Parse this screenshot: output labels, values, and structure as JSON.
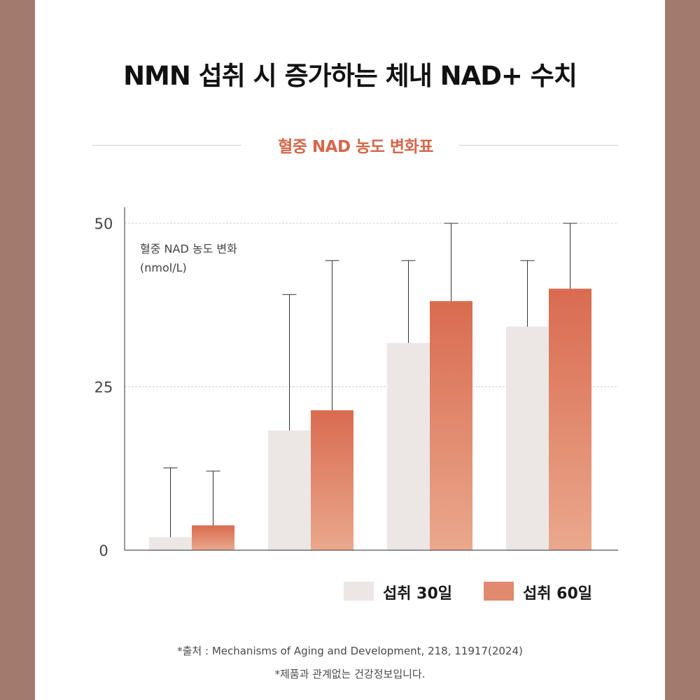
{
  "title": "NMN 섭취 시 증가하는 체내 NAD+ 수치",
  "subtitle": "혈중 NAD 농도 변화표",
  "chart_data": {
    "type": "bar",
    "categories": [
      "",
      "",
      "",
      ""
    ],
    "ylim": [
      0,
      50
    ],
    "yticks": [
      "0",
      "25",
      "50"
    ],
    "ylabel": "혈중 NAD 농도 변화",
    "yunit": "(nmol/L)",
    "grid": true,
    "legend_position": "bottom-right",
    "series": [
      {
        "name": "섭취 30일",
        "color": "#ece6e5",
        "values": [
          2,
          18.3,
          31.7,
          34.2
        ],
        "error_upper": [
          12.6,
          39.1,
          44.3,
          44.3
        ]
      },
      {
        "name": "섭취 60일",
        "color": "#d96b4f",
        "values": [
          3.8,
          21.4,
          38.1,
          40
        ],
        "error_upper": [
          12.1,
          44.3,
          50,
          50
        ]
      }
    ]
  },
  "footnotes": {
    "source": "*출처 : Mechanisms of Aging and Development, 218, 11917(2024)",
    "disclaimer": "*제품과 관계없는 건강정보입니다."
  },
  "colors": {
    "background": "#a27b6e",
    "accent": "#d4674a",
    "bar_light": "#ece6e5",
    "bar_gradient_top": "#d96b4f",
    "bar_gradient_bottom": "#eaa88d"
  }
}
